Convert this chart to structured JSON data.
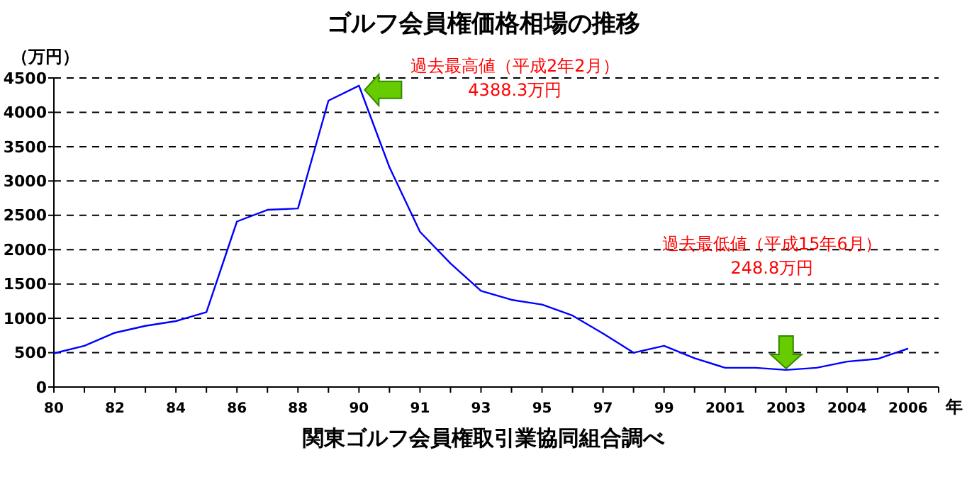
{
  "chart_data": {
    "type": "line",
    "title": "ゴルフ会員権価格相場の推移",
    "ylabel": "（万円）",
    "xlabel": "年",
    "categories": [
      "80",
      null,
      "82",
      null,
      "84",
      null,
      "86",
      null,
      "88",
      null,
      "90",
      null,
      "91",
      null,
      "93",
      null,
      "95",
      null,
      "97",
      null,
      "99",
      null,
      "2001",
      null,
      "2003",
      null,
      "2004",
      null,
      "2006",
      null
    ],
    "series": [
      {
        "color": "#0000ff",
        "values": [
          490,
          600,
          790,
          890,
          960,
          1090,
          2410,
          2580,
          2600,
          4170,
          4388.3,
          3200,
          2260,
          1800,
          1400,
          1270,
          1200,
          1040,
          780,
          500,
          600,
          420,
          280,
          280,
          248.8,
          280,
          370,
          410,
          560,
          null
        ]
      }
    ],
    "ylim": [
      0,
      4500
    ],
    "yticks": [
      0,
      500,
      1000,
      1500,
      2000,
      2500,
      3000,
      3500,
      4000,
      4500
    ],
    "grid": "y",
    "line_style": "solid",
    "marker": "none",
    "annotations": [
      "過去最高値（平成2年2月）\n4388.3万円",
      "過去最低値（平成15年6月）\n248.8万円",
      "関東ゴルフ会員権取引業協同組合調べ"
    ]
  }
}
